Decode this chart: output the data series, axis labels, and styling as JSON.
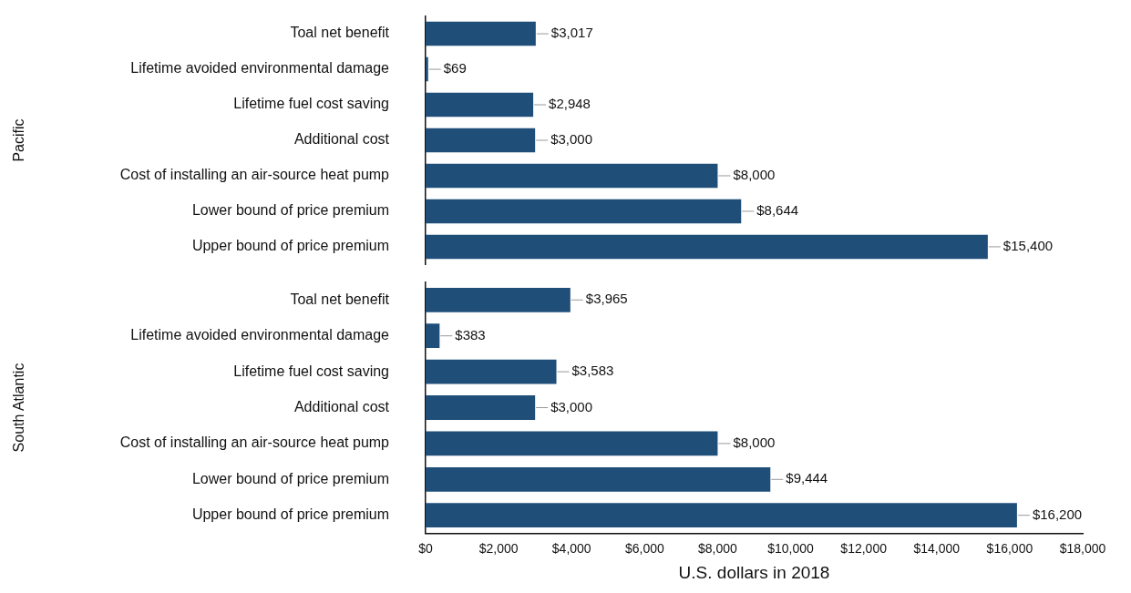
{
  "chart_data": [
    {
      "type": "bar",
      "orientation": "horizontal",
      "ylabel": "Pacific",
      "categories": [
        "Toal net benefit",
        "Lifetime avoided environmental damage",
        "Lifetime fuel cost saving",
        "Additional cost",
        "Cost of installing an air-source heat pump",
        "Lower bound of price premium",
        "Upper bound of price premium"
      ],
      "values": [
        3017,
        69,
        2948,
        3000,
        8000,
        8644,
        15400
      ],
      "value_labels": [
        "$3,017",
        "$69",
        "$2,948",
        "$3,000",
        "$8,000",
        "$8,644",
        "$15,400"
      ],
      "color": "#1f4e78",
      "xlim": [
        0,
        18000
      ],
      "tick_labels": "y",
      "legend": false,
      "grid": false
    },
    {
      "type": "bar",
      "orientation": "horizontal",
      "ylabel": "South Atlantic",
      "xlabel": "U.S. dollars in 2018",
      "categories": [
        "Toal net benefit",
        "Lifetime avoided environmental damage",
        "Lifetime fuel cost saving",
        "Additional cost",
        "Cost of installing an air-source heat pump",
        "Lower bound of price premium",
        "Upper bound of price premium"
      ],
      "values": [
        3965,
        383,
        3583,
        3000,
        8000,
        9444,
        16200
      ],
      "value_labels": [
        "$3,965",
        "$383",
        "$3,583",
        "$3,000",
        "$8,000",
        "$9,444",
        "$16,200"
      ],
      "color": "#1f4e78",
      "xlim": [
        0,
        18000
      ],
      "xticks": [
        {
          "value": 0,
          "label": "$0"
        },
        {
          "value": 2000,
          "label": "$2,000"
        },
        {
          "value": 4000,
          "label": "$4,000"
        },
        {
          "value": 6000,
          "label": "$6,000"
        },
        {
          "value": 8000,
          "label": "$8,000"
        },
        {
          "value": 10000,
          "label": "$10,000"
        },
        {
          "value": 12000,
          "label": "$12,000"
        },
        {
          "value": 14000,
          "label": "$14,000"
        },
        {
          "value": 16000,
          "label": "$16,000"
        },
        {
          "value": 18000,
          "label": "$18,000"
        }
      ],
      "legend": false,
      "grid": false
    }
  ]
}
